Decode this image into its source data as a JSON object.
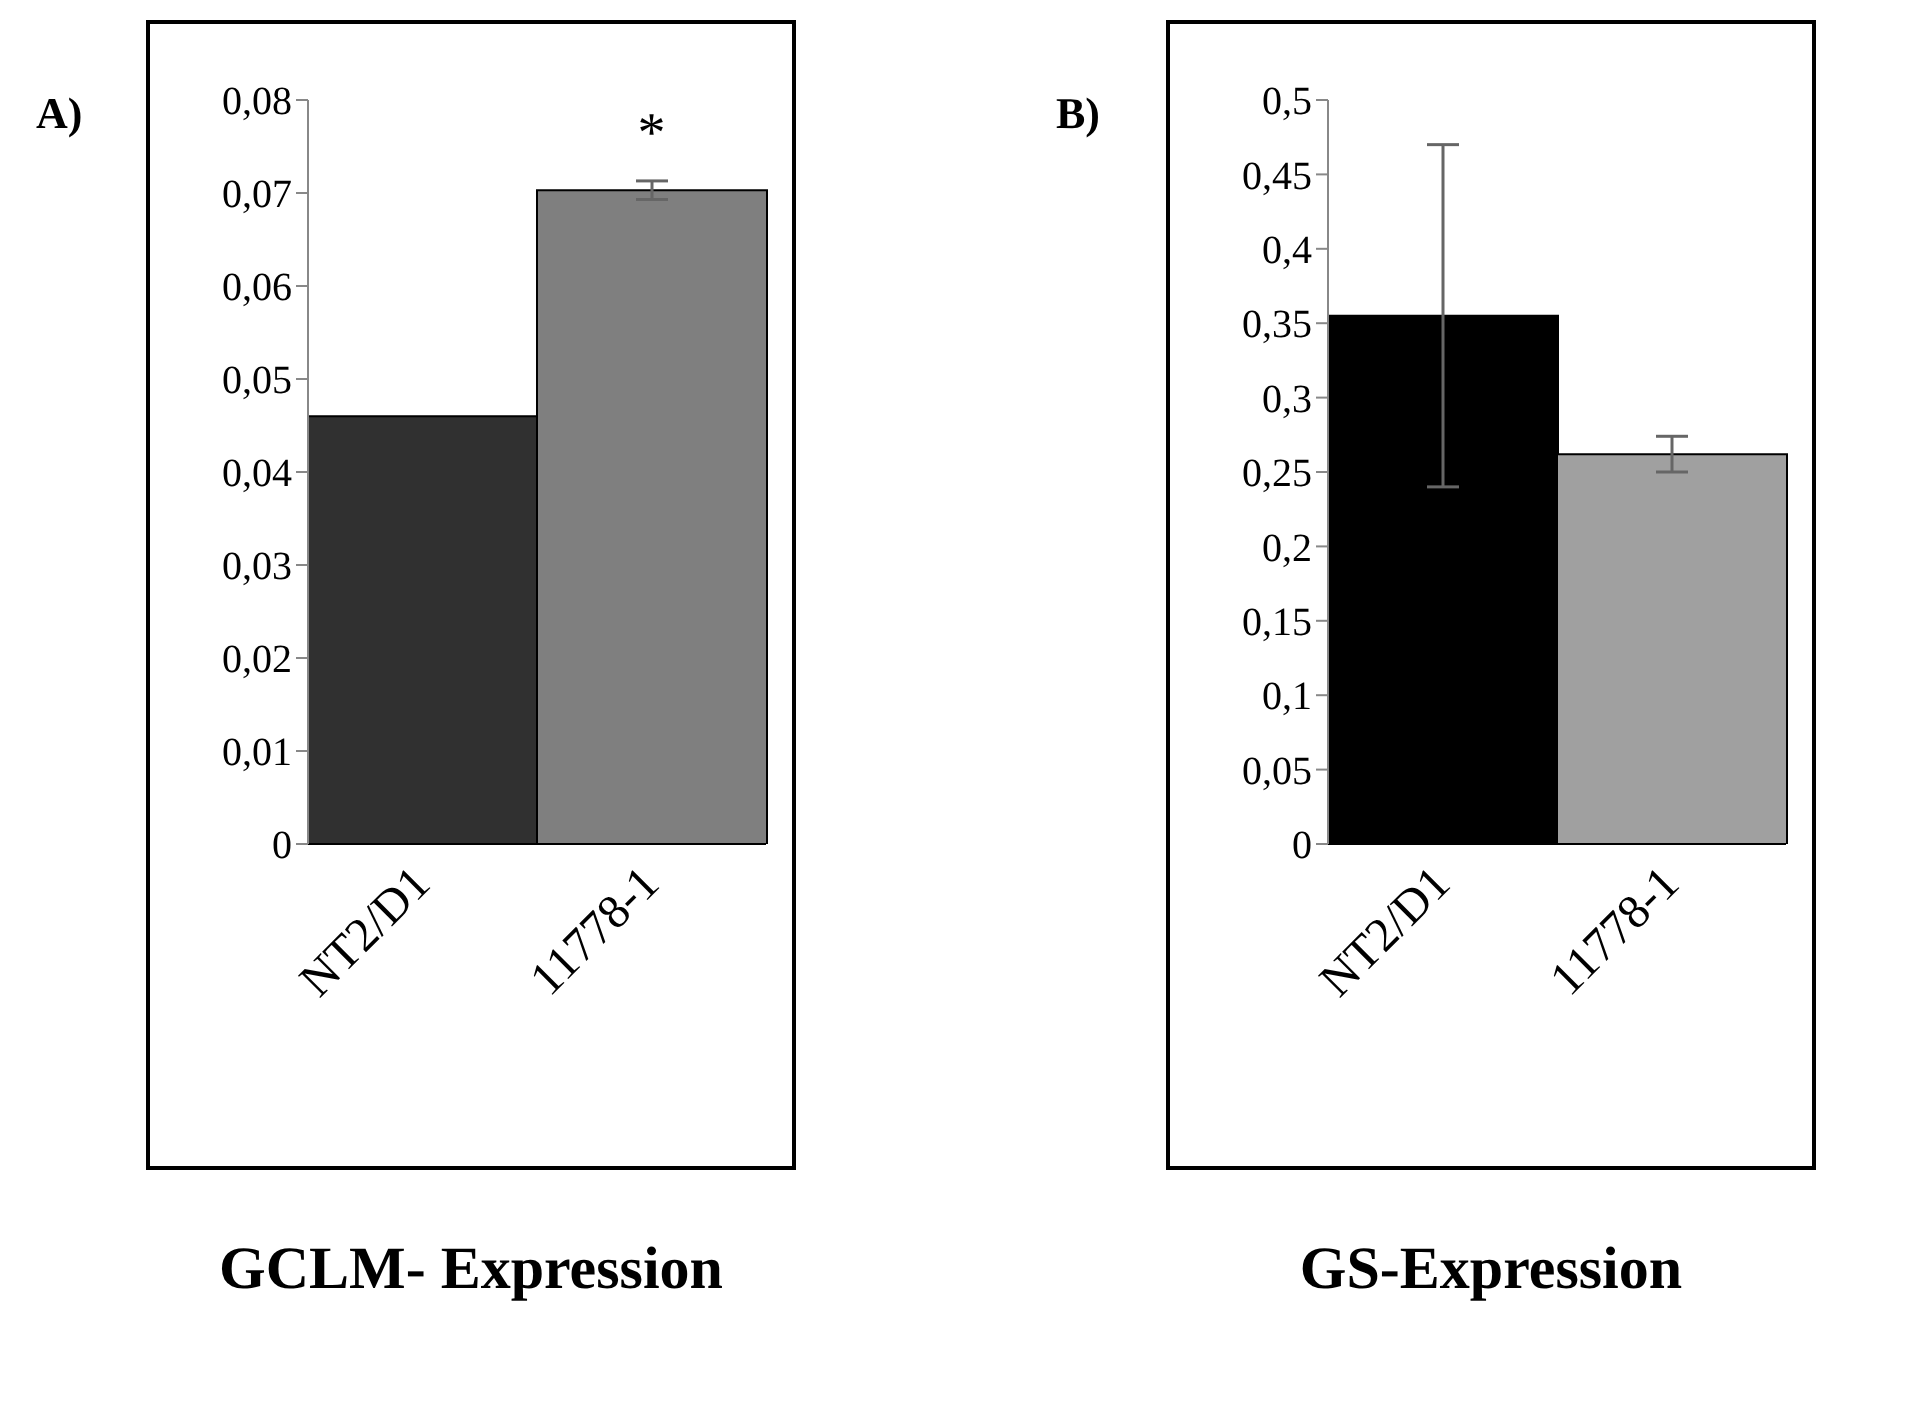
{
  "chart_data": [
    {
      "type": "bar",
      "title": "GCLM- Expression",
      "annotations": [
        "A)",
        "*"
      ],
      "categories": [
        "NT2/D1",
        "11778-1"
      ],
      "values": [
        0.046,
        0.0703
      ],
      "colors": [
        "#303030",
        "#7f7f7f"
      ],
      "errors": [
        null,
        0.001
      ],
      "ylim": [
        0,
        0.08
      ],
      "yticks": [
        0,
        {
          "value": 0.01,
          "label": "0,01"
        },
        {
          "value": 0.02,
          "label": "0,02"
        },
        {
          "value": 0.03,
          "label": "0,03"
        },
        {
          "value": 0.04,
          "label": "0,04"
        },
        {
          "value": 0.05,
          "label": "0,05"
        },
        {
          "value": 0.06,
          "label": "0,06"
        },
        {
          "value": 0.07,
          "label": "0,07"
        },
        {
          "value": 0.08,
          "label": "0,08"
        }
      ],
      "grid": false,
      "legend": false
    },
    {
      "type": "bar",
      "title": "GS-Expression",
      "annotations": [
        "B)"
      ],
      "categories": [
        "NT2/D1",
        "11778-1"
      ],
      "values": [
        0.355,
        0.262
      ],
      "colors": [
        "#000000",
        "#a0a0a0"
      ],
      "errors": [
        0.115,
        0.012
      ],
      "ylim": [
        0,
        0.5
      ],
      "yticks": [
        0,
        {
          "value": 0.05,
          "label": "0,05"
        },
        {
          "value": 0.1,
          "label": "0,1"
        },
        {
          "value": 0.15,
          "label": "0,15"
        },
        {
          "value": 0.2,
          "label": "0,2"
        },
        {
          "value": 0.25,
          "label": "0,25"
        },
        {
          "value": 0.3,
          "label": "0,3"
        },
        {
          "value": 0.35,
          "label": "0,35"
        },
        {
          "value": 0.4,
          "label": "0,4"
        },
        {
          "value": 0.45,
          "label": "0,45"
        },
        {
          "value": 0.5,
          "label": "0,5"
        }
      ],
      "grid": false,
      "legend": false
    }
  ]
}
